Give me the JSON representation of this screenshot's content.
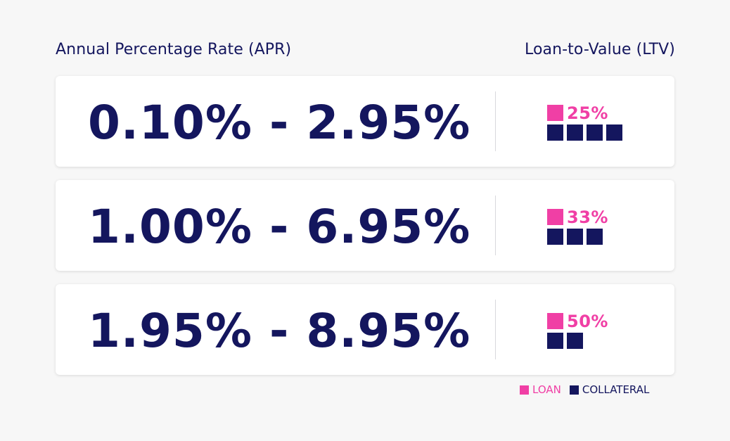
{
  "headers": {
    "apr": "Annual Percentage Rate (APR)",
    "ltv": "Loan-to-Value (LTV)"
  },
  "rows": [
    {
      "rate": "0.10% - 2.95%",
      "ltv_label": "25%",
      "loan_units": 1,
      "collateral_units": 4
    },
    {
      "rate": "1.00% - 6.95%",
      "ltv_label": "33%",
      "loan_units": 1,
      "collateral_units": 3
    },
    {
      "rate": "1.95% - 8.95%",
      "ltv_label": "50%",
      "loan_units": 1,
      "collateral_units": 2
    }
  ],
  "legend": {
    "loan": "LOAN",
    "collateral": "COLLATERAL"
  },
  "colors": {
    "loan": "#f03fa5",
    "collateral": "#14165e",
    "background": "#f7f7f7",
    "card": "#ffffff"
  }
}
